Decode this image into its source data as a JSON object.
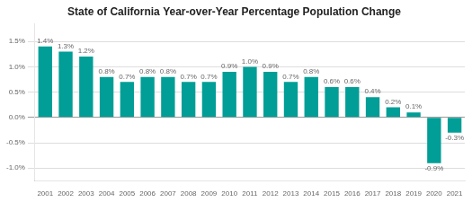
{
  "chart_data": {
    "type": "bar",
    "title": "State of California Year-over-Year Percentage Population Change",
    "categories": [
      "2001",
      "2002",
      "2003",
      "2004",
      "2005",
      "2006",
      "2007",
      "2008",
      "2009",
      "2010",
      "2011",
      "2012",
      "2013",
      "2014",
      "2015",
      "2016",
      "2017",
      "2018",
      "2019",
      "2020",
      "2021"
    ],
    "values": [
      1.4,
      1.3,
      1.2,
      0.8,
      0.7,
      0.8,
      0.8,
      0.7,
      0.7,
      0.9,
      1.0,
      0.9,
      0.7,
      0.8,
      0.6,
      0.6,
      0.4,
      0.2,
      0.1,
      -0.9,
      -0.3
    ],
    "value_labels": [
      "1.4%",
      "1.3%",
      "1.2%",
      "0.8%",
      "0.7%",
      "0.8%",
      "0.8%",
      "0.7%",
      "0.7%",
      "0.9%",
      "1.0%",
      "0.9%",
      "0.7%",
      "0.8%",
      "0.6%",
      "0.6%",
      "0.4%",
      "0.2%",
      "0.1%",
      "-0.9%",
      "-0.3%"
    ],
    "data_labels": true,
    "color": "#009e96",
    "ylim": [
      -1.25,
      1.85
    ],
    "yticks": [
      {
        "value": -1.0,
        "label": "-1.0%"
      },
      {
        "value": -0.5,
        "label": "-0.5%"
      },
      {
        "value": 0.0,
        "label": "0.0%"
      },
      {
        "value": 0.5,
        "label": "0.5%"
      },
      {
        "value": 1.0,
        "label": "1.0%"
      },
      {
        "value": 1.5,
        "label": "1.5%"
      }
    ],
    "grid": true
  }
}
